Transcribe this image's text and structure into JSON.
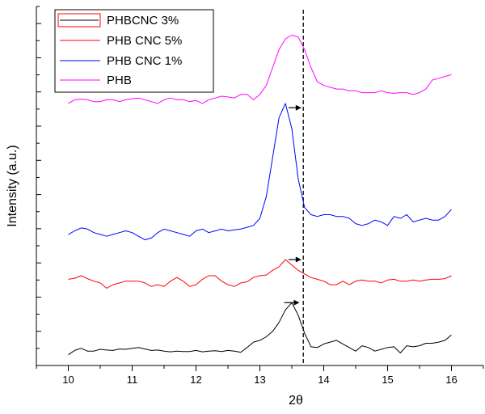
{
  "chart_data": {
    "type": "line",
    "title": "",
    "xlabel": "2θ",
    "ylabel": "Intensity (a.u.)",
    "xlim": [
      9.5,
      16.5
    ],
    "ylim": [
      0,
      100
    ],
    "x_ticks": [
      "10",
      "11",
      "12",
      "13",
      "14",
      "15",
      "16"
    ],
    "y_tick_labels": "none",
    "grid": false,
    "legend_position": "top-left",
    "legend": [
      {
        "label": "PHBCNC 3%",
        "color": "#000000",
        "marker": "open-box-red"
      },
      {
        "label": "PHB CNC 5%",
        "color": "#ff0000"
      },
      {
        "label": "PHB CNC 1%",
        "color": "#0000ff"
      },
      {
        "label": "PHB",
        "color": "#ff00ff"
      }
    ],
    "reference_line": {
      "x": 13.68,
      "style": "dashed"
    },
    "arrows": [
      {
        "x_from": 13.38,
        "x_to": 13.62,
        "y": 17.5
      },
      {
        "x_from": 13.45,
        "x_to": 13.65,
        "y": 29.5
      },
      {
        "x_from": 13.45,
        "x_to": 13.65,
        "y": 71.8
      }
    ],
    "series": [
      {
        "name": "PHBCNC 3%",
        "color": "#000000",
        "x": [
          10.0,
          10.1,
          10.2,
          10.3,
          10.4,
          10.5,
          10.6,
          10.7,
          10.8,
          10.9,
          11.0,
          11.1,
          11.2,
          11.3,
          11.4,
          11.5,
          11.6,
          11.7,
          11.8,
          11.9,
          12.0,
          12.1,
          12.2,
          12.3,
          12.4,
          12.5,
          12.6,
          12.7,
          12.8,
          12.9,
          13.0,
          13.1,
          13.2,
          13.3,
          13.4,
          13.5,
          13.6,
          13.7,
          13.8,
          13.9,
          14.0,
          14.1,
          14.2,
          14.3,
          14.4,
          14.5,
          14.6,
          14.7,
          14.8,
          14.9,
          15.0,
          15.1,
          15.2,
          15.3,
          15.4,
          15.5,
          15.6,
          15.7,
          15.8,
          15.9,
          16.0
        ],
        "y": [
          3.0,
          4.2,
          4.8,
          4.0,
          4.0,
          4.5,
          4.3,
          4.2,
          4.6,
          4.5,
          4.8,
          5.0,
          4.6,
          4.2,
          4.3,
          4.0,
          3.8,
          4.0,
          3.9,
          3.9,
          4.2,
          3.8,
          4.0,
          4.1,
          3.9,
          4.2,
          4.0,
          3.7,
          5.0,
          6.5,
          7.0,
          8.0,
          9.5,
          12.0,
          15.5,
          17.5,
          14.0,
          9.0,
          5.2,
          5.0,
          6.0,
          6.5,
          7.0,
          6.0,
          5.0,
          4.0,
          5.5,
          5.0,
          4.0,
          4.5,
          5.0,
          5.2,
          3.5,
          5.5,
          5.2,
          5.5,
          6.2,
          6.2,
          6.5,
          7.0,
          8.5
        ]
      },
      {
        "name": "PHB CNC 5%",
        "color": "#ff0000",
        "x": [
          10.0,
          10.1,
          10.2,
          10.3,
          10.4,
          10.5,
          10.6,
          10.7,
          10.8,
          10.9,
          11.0,
          11.1,
          11.2,
          11.3,
          11.4,
          11.5,
          11.6,
          11.7,
          11.8,
          11.9,
          12.0,
          12.1,
          12.2,
          12.3,
          12.4,
          12.5,
          12.6,
          12.7,
          12.8,
          12.9,
          13.0,
          13.1,
          13.2,
          13.3,
          13.4,
          13.5,
          13.6,
          13.7,
          13.8,
          13.9,
          14.0,
          14.1,
          14.2,
          14.3,
          14.4,
          14.5,
          14.6,
          14.7,
          14.8,
          14.9,
          15.0,
          15.1,
          15.2,
          15.3,
          15.4,
          15.5,
          15.6,
          15.7,
          15.8,
          15.9,
          16.0
        ],
        "y": [
          24.0,
          24.3,
          25.0,
          24.2,
          23.5,
          23.0,
          21.5,
          22.5,
          23.0,
          23.5,
          23.5,
          23.5,
          23.0,
          22.0,
          22.5,
          22.0,
          23.5,
          24.5,
          23.5,
          22.0,
          22.5,
          24.0,
          25.0,
          25.0,
          23.5,
          22.5,
          22.0,
          23.0,
          23.3,
          24.5,
          25.0,
          25.2,
          26.5,
          27.5,
          29.5,
          28.0,
          26.5,
          25.5,
          24.5,
          24.0,
          23.5,
          22.5,
          22.5,
          23.5,
          22.5,
          23.5,
          23.8,
          23.5,
          23.5,
          23.0,
          23.8,
          24.0,
          23.5,
          23.5,
          23.8,
          23.5,
          23.8,
          24.0,
          24.0,
          24.2,
          25.0
        ]
      },
      {
        "name": "PHB CNC 1%",
        "color": "#0000ff",
        "x": [
          10.0,
          10.1,
          10.2,
          10.3,
          10.4,
          10.5,
          10.6,
          10.7,
          10.8,
          10.9,
          11.0,
          11.1,
          11.2,
          11.3,
          11.4,
          11.5,
          11.6,
          11.7,
          11.8,
          11.9,
          12.0,
          12.1,
          12.2,
          12.3,
          12.4,
          12.5,
          12.6,
          12.7,
          12.8,
          12.9,
          13.0,
          13.1,
          13.2,
          13.3,
          13.4,
          13.5,
          13.6,
          13.7,
          13.8,
          13.9,
          14.0,
          14.1,
          14.2,
          14.3,
          14.4,
          14.5,
          14.6,
          14.7,
          14.8,
          14.9,
          15.0,
          15.1,
          15.2,
          15.3,
          15.4,
          15.5,
          15.6,
          15.7,
          15.8,
          15.9,
          16.0
        ],
        "y": [
          36.5,
          37.5,
          38.3,
          38.0,
          37.0,
          36.5,
          36.0,
          36.5,
          37.0,
          37.5,
          37.0,
          36.0,
          35.0,
          35.5,
          37.0,
          38.0,
          37.5,
          37.0,
          36.5,
          36.0,
          37.5,
          38.0,
          37.0,
          37.5,
          38.0,
          37.5,
          37.8,
          38.0,
          38.5,
          39.0,
          41.0,
          47.0,
          58.0,
          69.0,
          73.0,
          66.0,
          52.0,
          44.0,
          42.0,
          41.5,
          42.0,
          42.0,
          41.5,
          41.5,
          41.0,
          39.5,
          39.0,
          39.5,
          40.5,
          40.0,
          39.0,
          41.5,
          41.0,
          42.0,
          40.0,
          40.5,
          41.0,
          40.5,
          40.5,
          41.5,
          43.5
        ]
      },
      {
        "name": "PHB",
        "color": "#ff00ff",
        "x": [
          10.0,
          10.1,
          10.2,
          10.3,
          10.4,
          10.5,
          10.6,
          10.7,
          10.8,
          10.9,
          11.0,
          11.1,
          11.2,
          11.3,
          11.4,
          11.5,
          11.6,
          11.7,
          11.8,
          11.9,
          12.0,
          12.1,
          12.2,
          12.3,
          12.4,
          12.5,
          12.6,
          12.7,
          12.8,
          12.9,
          13.0,
          13.1,
          13.2,
          13.3,
          13.4,
          13.5,
          13.6,
          13.7,
          13.8,
          13.9,
          14.0,
          14.1,
          14.2,
          14.3,
          14.4,
          14.5,
          14.6,
          14.7,
          14.8,
          14.9,
          15.0,
          15.1,
          15.2,
          15.3,
          15.4,
          15.5,
          15.6,
          15.7,
          15.8,
          15.9,
          16.0
        ],
        "y": [
          73.0,
          74.0,
          74.2,
          74.0,
          73.5,
          73.5,
          74.0,
          74.0,
          73.5,
          74.0,
          74.3,
          74.5,
          74.0,
          73.5,
          73.0,
          74.0,
          74.5,
          74.0,
          74.0,
          73.5,
          73.8,
          73.0,
          74.0,
          74.5,
          75.0,
          74.8,
          74.5,
          75.5,
          75.5,
          74.0,
          75.5,
          78.0,
          83.0,
          88.0,
          91.0,
          92.0,
          91.5,
          88.0,
          83.0,
          79.0,
          78.0,
          77.5,
          77.0,
          77.0,
          76.5,
          76.5,
          76.0,
          76.0,
          76.0,
          76.5,
          76.0,
          75.8,
          76.0,
          76.0,
          75.5,
          76.0,
          77.0,
          79.5,
          80.0,
          80.5,
          81.0
        ]
      }
    ]
  }
}
